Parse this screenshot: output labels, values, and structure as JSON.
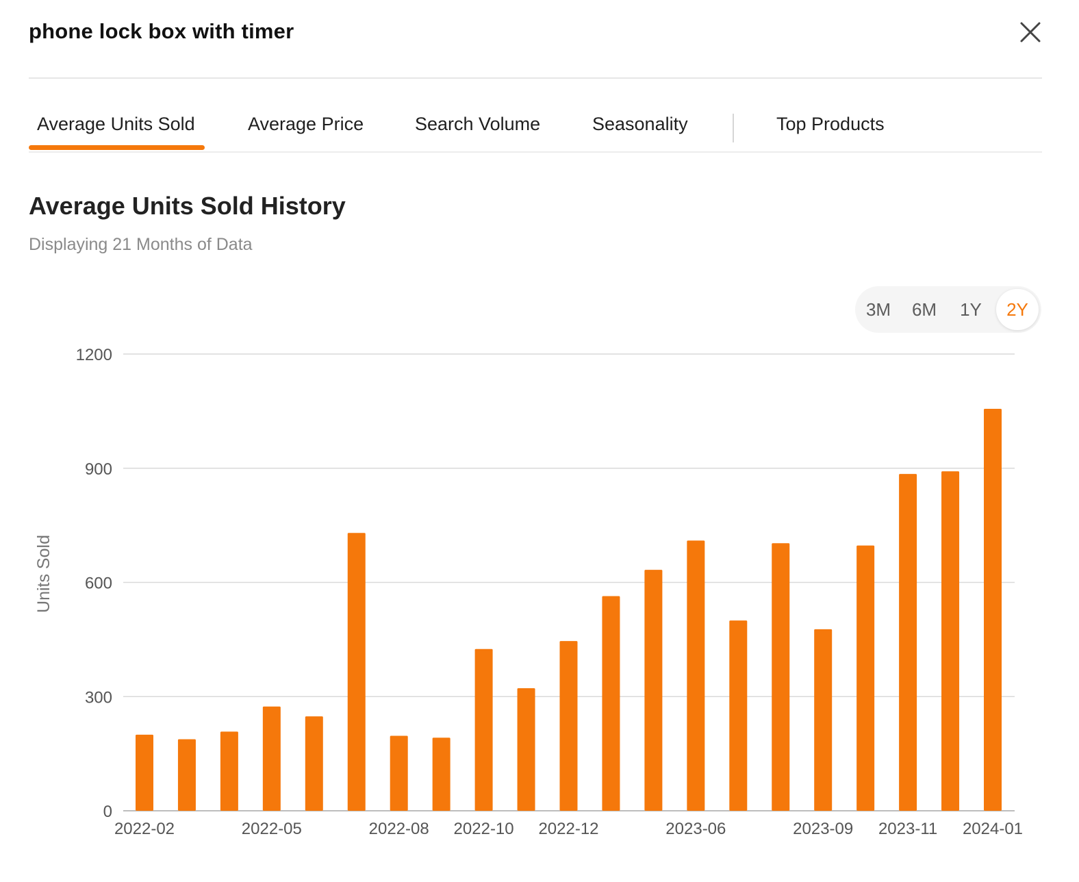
{
  "dialog": {
    "title": "phone lock box with timer",
    "close_icon": "close-icon"
  },
  "tabs": [
    {
      "label": "Average Units Sold",
      "active": true
    },
    {
      "label": "Average Price",
      "active": false
    },
    {
      "label": "Search Volume",
      "active": false
    },
    {
      "label": "Seasonality",
      "active": false
    },
    {
      "label": "Top Products",
      "active": false
    }
  ],
  "section": {
    "title": "Average Units Sold History",
    "subtitle": "Displaying 21 Months of Data"
  },
  "range_selector": {
    "options": [
      "3M",
      "6M",
      "1Y",
      "2Y"
    ],
    "selected": "2Y"
  },
  "colors": {
    "accent": "#f5780b",
    "grid": "#d9d9d9",
    "axis_text": "#555555"
  },
  "chart_data": {
    "type": "bar",
    "title": "",
    "xlabel": "",
    "ylabel": "Units Sold",
    "ylim": [
      0,
      1200
    ],
    "yticks": [
      0,
      300,
      600,
      900,
      1200
    ],
    "x_tick_labels": [
      "2022-02",
      "2022-05",
      "2022-08",
      "2022-10",
      "2022-12",
      "2023-06",
      "2023-09",
      "2023-11",
      "2024-01"
    ],
    "x_tick_positions": [
      0,
      3,
      6,
      8,
      10,
      13,
      16,
      18,
      20
    ],
    "values": [
      200,
      188,
      208,
      274,
      248,
      730,
      197,
      192,
      425,
      322,
      446,
      564,
      633,
      710,
      500,
      703,
      477,
      697,
      885,
      892,
      1056
    ],
    "grid": true,
    "legend": "none"
  }
}
